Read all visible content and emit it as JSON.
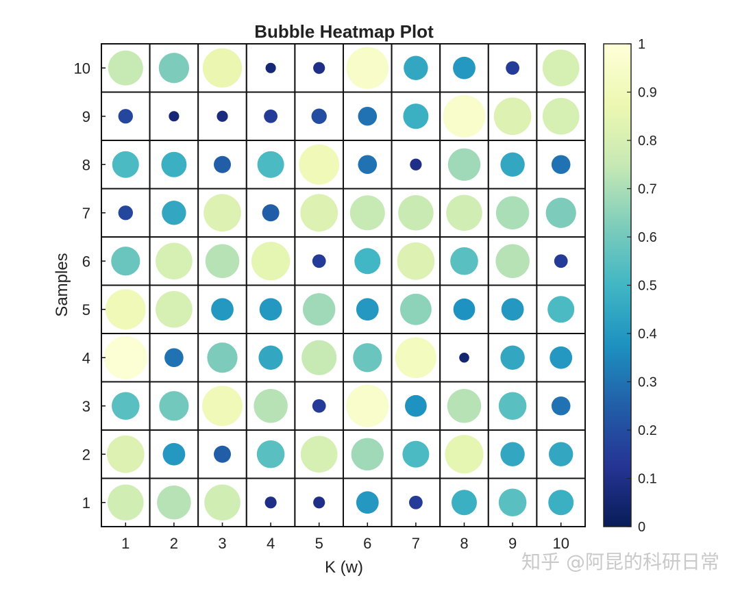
{
  "chart_data": {
    "type": "heatmap",
    "subtype": "bubble",
    "title": "Bubble Heatmap Plot",
    "xlabel": "K (w)",
    "ylabel": "Samples",
    "x_categories": [
      "1",
      "2",
      "3",
      "4",
      "5",
      "6",
      "7",
      "8",
      "9",
      "10"
    ],
    "y_categories": [
      "1",
      "2",
      "3",
      "4",
      "5",
      "6",
      "7",
      "8",
      "9",
      "10"
    ],
    "clim": [
      0,
      1
    ],
    "colormap": "YlGnBu",
    "colorbar": {
      "ticks": [
        0,
        0.1,
        0.2,
        0.3,
        0.4,
        0.5,
        0.6,
        0.7,
        0.8,
        0.9,
        1
      ],
      "tick_labels": [
        "0",
        "0.1",
        "0.2",
        "0.3",
        "0.4",
        "0.5",
        "0.6",
        "0.7",
        "0.8",
        "0.9",
        "1"
      ],
      "stops": [
        "#081d58",
        "#253494",
        "#225ea8",
        "#1d91c0",
        "#41b6c4",
        "#7fcdbb",
        "#c7e9b4",
        "#edf8b1",
        "#ffffd9"
      ]
    },
    "values": [
      [
        0.78,
        0.72,
        0.78,
        0.1,
        0.1,
        0.4,
        0.15,
        0.48,
        0.55,
        0.48
      ],
      [
        0.82,
        0.4,
        0.25,
        0.55,
        0.8,
        0.68,
        0.52,
        0.85,
        0.45,
        0.45
      ],
      [
        0.55,
        0.6,
        0.9,
        0.72,
        0.15,
        0.96,
        0.38,
        0.72,
        0.55,
        0.3
      ],
      [
        0.98,
        0.3,
        0.62,
        0.45,
        0.75,
        0.58,
        0.92,
        0.05,
        0.45,
        0.4
      ],
      [
        0.9,
        0.8,
        0.4,
        0.4,
        0.68,
        0.4,
        0.65,
        0.38,
        0.4,
        0.52
      ],
      [
        0.58,
        0.8,
        0.72,
        0.85,
        0.15,
        0.5,
        0.82,
        0.55,
        0.72,
        0.15
      ],
      [
        0.18,
        0.45,
        0.82,
        0.25,
        0.82,
        0.75,
        0.76,
        0.78,
        0.7,
        0.62
      ],
      [
        0.52,
        0.48,
        0.25,
        0.52,
        0.9,
        0.3,
        0.1,
        0.68,
        0.45,
        0.3
      ],
      [
        0.18,
        0.06,
        0.08,
        0.15,
        0.2,
        0.3,
        0.48,
        0.96,
        0.82,
        0.8
      ],
      [
        0.75,
        0.62,
        0.87,
        0.06,
        0.1,
        0.95,
        0.45,
        0.4,
        0.15,
        0.8
      ]
    ]
  },
  "watermark": "知乎 @阿昆的科研日常"
}
